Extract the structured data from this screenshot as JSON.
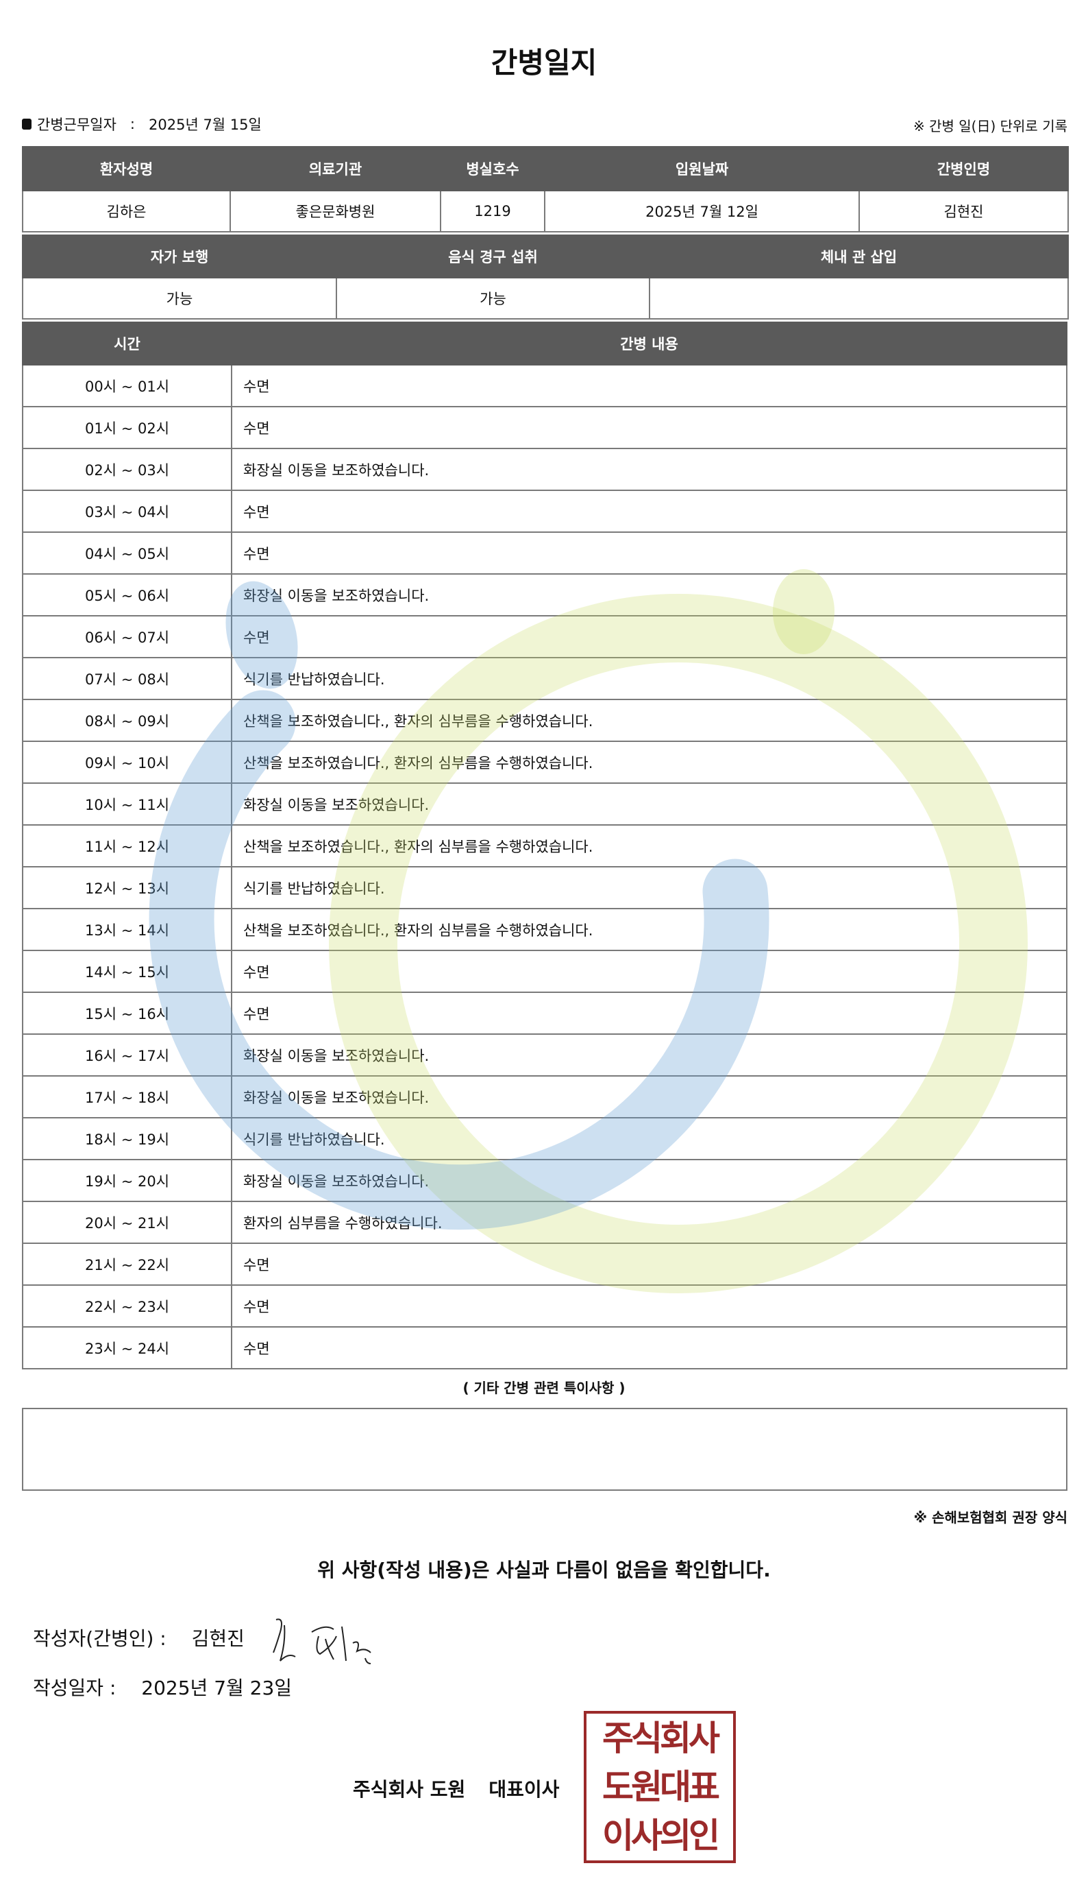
{
  "title": "간병일지",
  "work_date": {
    "label": "간병근무일자",
    "separator": ":",
    "value": "2025년 7월 15일"
  },
  "note_top": "※ 간병 일(日) 단위로 기록",
  "info_table": {
    "headers": [
      "환자성명",
      "의료기관",
      "병실호수",
      "입원날짜",
      "간병인명"
    ],
    "values": [
      "김하은",
      "좋은문화병원",
      "1219",
      "2025년 7월 12일",
      "김현진"
    ]
  },
  "status_table": {
    "headers": [
      "자가 보행",
      "음식 경구 섭취",
      "체내 관 삽입"
    ],
    "values": [
      "가능",
      "가능",
      ""
    ]
  },
  "log_table": {
    "headers": [
      "시간",
      "간병 내용"
    ],
    "rows": [
      {
        "time": "00시 ~ 01시",
        "content": "수면"
      },
      {
        "time": "01시 ~ 02시",
        "content": "수면"
      },
      {
        "time": "02시 ~ 03시",
        "content": "화장실 이동을 보조하였습니다."
      },
      {
        "time": "03시 ~ 04시",
        "content": "수면"
      },
      {
        "time": "04시 ~ 05시",
        "content": "수면"
      },
      {
        "time": "05시 ~ 06시",
        "content": "화장실 이동을 보조하였습니다."
      },
      {
        "time": "06시 ~ 07시",
        "content": "수면"
      },
      {
        "time": "07시 ~ 08시",
        "content": "식기를 반납하였습니다."
      },
      {
        "time": "08시 ~ 09시",
        "content": "산책을 보조하였습니다., 환자의 심부름을 수행하였습니다."
      },
      {
        "time": "09시 ~ 10시",
        "content": "산책을 보조하였습니다., 환자의 심부름을 수행하였습니다."
      },
      {
        "time": "10시 ~ 11시",
        "content": "화장실 이동을 보조하였습니다."
      },
      {
        "time": "11시 ~ 12시",
        "content": "산책을 보조하였습니다., 환자의 심부름을 수행하였습니다."
      },
      {
        "time": "12시 ~ 13시",
        "content": "식기를 반납하였습니다."
      },
      {
        "time": "13시 ~ 14시",
        "content": "산책을 보조하였습니다., 환자의 심부름을 수행하였습니다."
      },
      {
        "time": "14시 ~ 15시",
        "content": "수면"
      },
      {
        "time": "15시 ~ 16시",
        "content": "수면"
      },
      {
        "time": "16시 ~ 17시",
        "content": "화장실 이동을 보조하였습니다."
      },
      {
        "time": "17시 ~ 18시",
        "content": "화장실 이동을 보조하였습니다."
      },
      {
        "time": "18시 ~ 19시",
        "content": "식기를 반납하였습니다."
      },
      {
        "time": "19시 ~ 20시",
        "content": "화장실 이동을 보조하였습니다."
      },
      {
        "time": "20시 ~ 21시",
        "content": "환자의 심부름을 수행하였습니다."
      },
      {
        "time": "21시 ~ 22시",
        "content": "수면"
      },
      {
        "time": "22시 ~ 23시",
        "content": "수면"
      },
      {
        "time": "23시 ~ 24시",
        "content": "수면"
      }
    ]
  },
  "memo": {
    "label": "( 기타 간병 관련 특이사항 )",
    "value": ""
  },
  "note_bottom": "※ 손해보험협회 권장 양식",
  "confirmation": "위 사항(작성 내용)은 사실과 다름이 없음을 확인합니다.",
  "writer": {
    "label": "작성자(간병인) :",
    "name": "김현진"
  },
  "written_date": {
    "label": "작성일자 :",
    "value": "2025년 7월 23일"
  },
  "company": {
    "name": "주식회사 도원",
    "title": "대표이사"
  },
  "stamp": {
    "lines": [
      "주식회사",
      "도원대표",
      "이사의인"
    ],
    "color": "#9b2a2a"
  },
  "colors": {
    "header_bg": "#5a5a5a",
    "watermark_blue": "#64a0d2",
    "watermark_green": "#c8dc64"
  }
}
